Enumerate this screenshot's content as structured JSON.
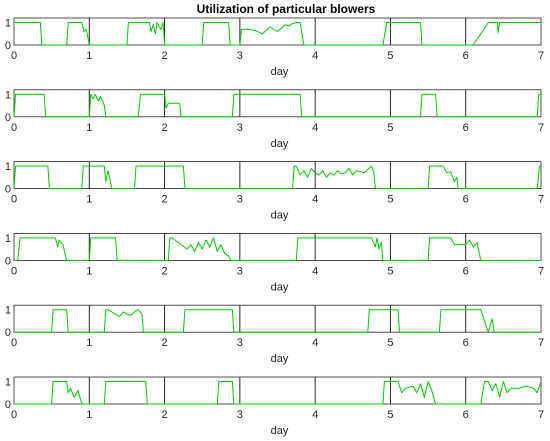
{
  "chart_data": {
    "type": "line",
    "title": "Utilization of particular blowers",
    "trace_color": "#00cc00",
    "axes_color": "#262626",
    "panels": [
      {
        "xlabel": "day",
        "xlim": [
          0,
          7
        ],
        "ylim": [
          0,
          1.2
        ],
        "xticks": [
          "0",
          "1",
          "2",
          "3",
          "4",
          "5",
          "6",
          "7"
        ],
        "yticks": [
          "0",
          "1"
        ],
        "series": [
          {
            "x": [
              0,
              0.02,
              0.05,
              0.35,
              0.37,
              0.4,
              0.7,
              0.72,
              0.75,
              0.9,
              0.93,
              0.96,
              1.0,
              1.05,
              1.08,
              1.1,
              1.5,
              1.52,
              1.55,
              1.8,
              1.82,
              1.85,
              1.88,
              1.9,
              1.95,
              1.98,
              2.0,
              2.05,
              2.08,
              2.5,
              2.52,
              2.55,
              2.85,
              2.87,
              2.9,
              3.0,
              3.02,
              3.1,
              3.2,
              3.3,
              3.4,
              3.5,
              3.55,
              3.6,
              3.65,
              3.7,
              3.75,
              3.8,
              3.85,
              4.3,
              4.9,
              4.95,
              5.0,
              5.4,
              5.42,
              5.45,
              5.5,
              6.05,
              6.08,
              6.1,
              6.3,
              6.32,
              6.35,
              6.42,
              6.43,
              6.45,
              6.5,
              7.0
            ],
            "y": [
              1,
              1,
              1,
              1,
              0,
              0,
              0,
              1,
              1,
              1,
              0.6,
              0.7,
              0,
              0,
              0,
              0,
              0,
              1,
              1,
              1,
              0.6,
              0.9,
              0.5,
              1,
              0.7,
              1,
              0,
              0,
              0,
              0,
              1,
              1,
              1,
              0,
              0,
              0,
              0.7,
              0.7,
              0.65,
              0.5,
              0.8,
              0.6,
              0.75,
              0.9,
              0.85,
              0.95,
              1,
              1,
              0,
              0,
              0,
              1,
              1,
              1,
              0,
              0,
              0,
              0,
              0,
              0,
              1,
              1,
              1,
              1,
              0.55,
              1,
              1,
              1
            ]
          }
        ]
      },
      {
        "xlabel": "day",
        "xlim": [
          0,
          7
        ],
        "ylim": [
          0,
          1.2
        ],
        "xticks": [
          "0",
          "1",
          "2",
          "3",
          "4",
          "5",
          "6",
          "7"
        ],
        "yticks": [
          "0",
          "1"
        ],
        "series": [
          {
            "x": [
              0,
              0.02,
              0.05,
              0.4,
              0.42,
              0.45,
              1.0,
              1.02,
              1.05,
              1.08,
              1.12,
              1.15,
              1.2,
              1.22,
              1.25,
              1.65,
              1.68,
              1.7,
              2.0,
              2.02,
              2.05,
              2.1,
              2.2,
              2.22,
              2.25,
              2.9,
              2.92,
              2.95,
              3.8,
              3.82,
              3.85,
              5.4,
              5.42,
              5.45,
              5.6,
              5.62,
              5.65,
              6.95,
              6.97,
              7.0
            ],
            "y": [
              0,
              1,
              1,
              1,
              0,
              0,
              0,
              1,
              0.8,
              1,
              0.7,
              0.9,
              0.5,
              0,
              0,
              0,
              1,
              1,
              1,
              0.4,
              0.6,
              0.6,
              0.6,
              0,
              0,
              0,
              1,
              1,
              1,
              0,
              0,
              0,
              1,
              1,
              1,
              0,
              0,
              0,
              1,
              1
            ]
          }
        ]
      },
      {
        "xlabel": "day",
        "xlim": [
          0,
          7
        ],
        "ylim": [
          0,
          1.2
        ],
        "xticks": [
          "0",
          "1",
          "2",
          "3",
          "4",
          "5",
          "6",
          "7"
        ],
        "yticks": [
          "0",
          "1"
        ],
        "series": [
          {
            "x": [
              0,
              0.02,
              0.05,
              0.45,
              0.47,
              0.5,
              0.9,
              0.92,
              0.95,
              1.2,
              1.22,
              1.25,
              1.3,
              1.32,
              1.6,
              1.62,
              1.65,
              2.25,
              2.27,
              2.3,
              3.7,
              3.72,
              3.75,
              3.8,
              3.85,
              3.9,
              3.95,
              4.0,
              4.05,
              4.1,
              4.15,
              4.2,
              4.25,
              4.3,
              4.35,
              4.4,
              4.45,
              4.5,
              4.55,
              4.6,
              4.65,
              4.7,
              4.75,
              4.78,
              4.8,
              5.5,
              5.52,
              5.55,
              5.7,
              5.75,
              5.8,
              5.85,
              5.88,
              5.9,
              6.95,
              6.98,
              7.0
            ],
            "y": [
              0,
              1,
              1,
              1,
              0,
              0,
              0,
              1,
              1,
              1,
              0.3,
              0.8,
              0,
              0,
              0,
              1,
              1,
              1,
              0,
              0,
              0,
              1,
              1,
              0.6,
              0.8,
              0.5,
              0.9,
              0.7,
              0.6,
              0.8,
              0.5,
              0.7,
              0.6,
              0.8,
              0.65,
              0.7,
              0.9,
              0.6,
              0.8,
              0.75,
              0.7,
              0.85,
              1,
              0.7,
              0,
              0,
              1,
              1,
              1,
              0.7,
              0.75,
              0.3,
              0.5,
              0,
              0,
              1,
              1
            ]
          }
        ]
      },
      {
        "xlabel": "day",
        "xlim": [
          0,
          7
        ],
        "ylim": [
          0,
          1.2
        ],
        "xticks": [
          "0",
          "1",
          "2",
          "3",
          "4",
          "5",
          "6",
          "7"
        ],
        "yticks": [
          "0",
          "1"
        ],
        "series": [
          {
            "x": [
              0,
              0.05,
              0.08,
              0.1,
              0.55,
              0.58,
              0.6,
              0.65,
              0.7,
              0.72,
              0.75,
              1.0,
              1.02,
              1.05,
              1.35,
              1.37,
              1.4,
              2.05,
              2.07,
              2.1,
              2.3,
              2.35,
              2.4,
              2.45,
              2.5,
              2.55,
              2.6,
              2.65,
              2.7,
              2.75,
              2.8,
              2.85,
              2.88,
              2.9,
              3.75,
              3.77,
              3.8,
              4.75,
              4.8,
              4.82,
              4.85,
              4.88,
              4.9,
              4.95,
              4.97,
              5.0,
              5.5,
              5.52,
              5.55,
              5.8,
              5.85,
              5.9,
              6.0,
              6.05,
              6.1,
              6.15,
              6.2,
              6.5,
              6.52,
              6.55,
              7.0
            ],
            "y": [
              0,
              0,
              1,
              1,
              1,
              0.6,
              0.9,
              0.7,
              0,
              0,
              0,
              0,
              1,
              1,
              1,
              0,
              0,
              0,
              1,
              1,
              0.5,
              0.7,
              0.4,
              0.8,
              0.5,
              0.9,
              0.6,
              1,
              0.4,
              0.7,
              0.3,
              0.2,
              0,
              0,
              0,
              1,
              1,
              1,
              0.6,
              1,
              0.5,
              0.8,
              0,
              0,
              0,
              0,
              0,
              1,
              1,
              1,
              0.7,
              0.7,
              0.7,
              0.9,
              0.6,
              0.8,
              0,
              0,
              0,
              0,
              0
            ]
          }
        ]
      },
      {
        "xlabel": "day",
        "xlim": [
          0,
          7
        ],
        "ylim": [
          0,
          1.2
        ],
        "xticks": [
          "0",
          "1",
          "2",
          "3",
          "4",
          "5",
          "6",
          "7"
        ],
        "yticks": [
          "0",
          "1"
        ],
        "series": [
          {
            "x": [
              0,
              0.5,
              0.52,
              0.55,
              0.7,
              0.72,
              0.75,
              1.2,
              1.22,
              1.25,
              1.35,
              1.4,
              1.45,
              1.5,
              1.55,
              1.6,
              1.65,
              1.7,
              1.72,
              1.75,
              2.25,
              2.27,
              2.3,
              2.9,
              2.92,
              2.95,
              4.7,
              4.72,
              4.75,
              5.1,
              5.12,
              5.15,
              5.65,
              5.67,
              5.7,
              6.2,
              6.25,
              6.3,
              6.35,
              6.38,
              6.4,
              7.0
            ],
            "y": [
              0,
              0,
              1,
              1,
              1,
              0,
              0,
              0,
              1,
              1,
              0.8,
              0.7,
              0.9,
              0.8,
              0.75,
              0.9,
              1,
              0.8,
              0,
              0,
              0,
              1,
              1,
              1,
              0,
              0,
              0,
              1,
              1,
              1,
              0,
              0,
              0,
              1,
              1,
              1,
              0.5,
              0,
              0.6,
              0,
              0,
              0
            ]
          }
        ]
      },
      {
        "xlabel": "day",
        "xlim": [
          0,
          7
        ],
        "ylim": [
          0,
          1.2
        ],
        "xticks": [
          "0",
          "1",
          "2",
          "3",
          "4",
          "5",
          "6",
          "7"
        ],
        "yticks": [
          "0",
          "1"
        ],
        "series": [
          {
            "x": [
              0,
              0.5,
              0.52,
              0.55,
              0.7,
              0.72,
              0.75,
              0.8,
              0.85,
              0.9,
              1.2,
              1.22,
              1.25,
              1.75,
              1.77,
              1.8,
              2.7,
              2.72,
              2.75,
              2.9,
              2.92,
              2.95,
              4.9,
              4.92,
              4.95,
              5.1,
              5.15,
              5.2,
              5.3,
              5.35,
              5.4,
              5.45,
              5.5,
              5.55,
              5.6,
              5.65,
              5.7,
              5.75,
              5.8,
              6.2,
              6.25,
              6.3,
              6.35,
              6.4,
              6.45,
              6.5,
              6.55,
              6.6,
              6.7,
              6.8,
              6.9,
              6.95,
              7.0
            ],
            "y": [
              0,
              0,
              1,
              1,
              1,
              0.5,
              0.7,
              0.3,
              0.6,
              0,
              0,
              1,
              1,
              1,
              0,
              0,
              0,
              1,
              1,
              1,
              0,
              0,
              0,
              1,
              1,
              1,
              0.5,
              0.7,
              0.8,
              0.5,
              0.9,
              0.3,
              1,
              0.6,
              0,
              0,
              0,
              0,
              0,
              0,
              1,
              1,
              0.6,
              0.9,
              0.3,
              1,
              0.5,
              0.7,
              0.7,
              0.8,
              0.7,
              0.5,
              1
            ]
          }
        ]
      }
    ]
  }
}
